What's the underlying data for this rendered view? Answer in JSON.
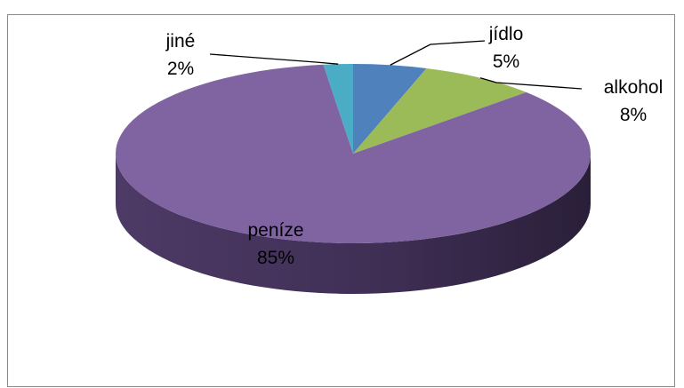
{
  "chart_data": {
    "type": "pie",
    "style": "3d",
    "slices": [
      {
        "label": "jídlo",
        "value": 5,
        "value_label": "5%",
        "color": "#4f81bd"
      },
      {
        "label": "alkohol",
        "value": 8,
        "value_label": "8%",
        "color": "#9bbb59"
      },
      {
        "label": "peníze",
        "value": 85,
        "value_label": "85%",
        "color": "#8064a2"
      },
      {
        "label": "jiné",
        "value": 2,
        "value_label": "2%",
        "color": "#4bacc6"
      }
    ],
    "title": "",
    "legend": "none"
  }
}
